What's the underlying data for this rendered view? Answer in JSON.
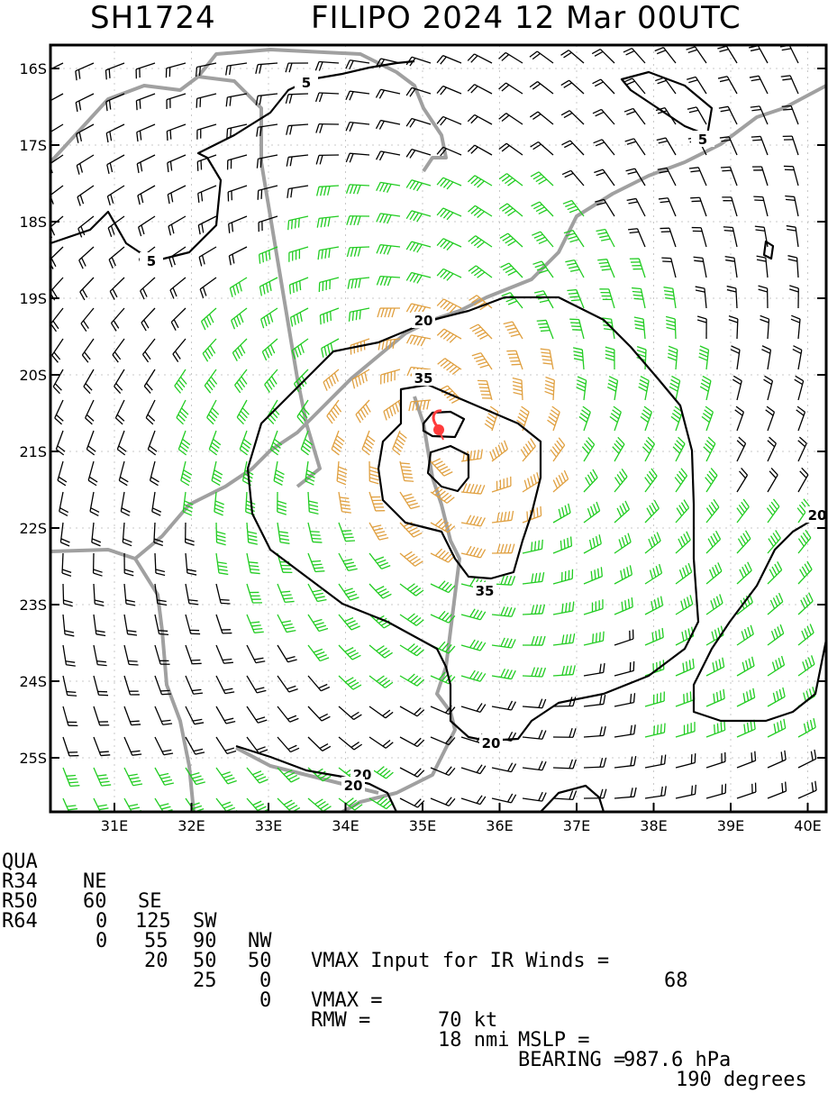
{
  "header": {
    "storm_id": "SH1724",
    "storm_title": "FILIPO 2024 12 Mar 00UTC"
  },
  "map": {
    "lat_labels": [
      "16S",
      "17S",
      "18S",
      "19S",
      "20S",
      "21S",
      "22S",
      "23S",
      "24S",
      "25S"
    ],
    "lon_labels": [
      "31E",
      "32E",
      "33E",
      "34E",
      "35E",
      "36E",
      "37E",
      "38E",
      "39E",
      "40E"
    ],
    "contour_labels": [
      "5",
      "5",
      "5",
      "20",
      "20",
      "20",
      "20",
      "20",
      "35",
      "35"
    ],
    "storm_center": {
      "lat": -20.75,
      "lon": 35.3
    },
    "colors": {
      "contour": "#000000",
      "coastline": "#a0a0a0",
      "barb_below_34kt": "#000000",
      "barb_34_to_50kt": "#22cc22",
      "barb_50_to_64kt": "#e0a040",
      "center_marker": "#ff3b3b"
    }
  },
  "table": {
    "header": {
      "label": "QUA",
      "ne": "NE",
      "se": "SE",
      "sw": "SW",
      "nw": "NW",
      "note": "VMAX Input for IR Winds =",
      "note_value": "68"
    },
    "r34": {
      "label": "R34",
      "ne": "60",
      "se": "125",
      "sw": "90",
      "nw": "50"
    },
    "r50": {
      "label": "R50",
      "ne": "0",
      "se": "55",
      "sw": "50",
      "nw": "0",
      "vmax_label": "VMAX =",
      "vmax_value": "70 kt",
      "mslp_label": "MSLP =",
      "mslp_value": "987.6 hPa"
    },
    "r64": {
      "label": "R64",
      "ne": "0",
      "se": "20",
      "sw": "25",
      "nw": "0",
      "rmw_label": "RMW =",
      "rmw_value": "18 nmi",
      "bearing_label": "BEARING =",
      "bearing_value": "190 degrees"
    }
  }
}
